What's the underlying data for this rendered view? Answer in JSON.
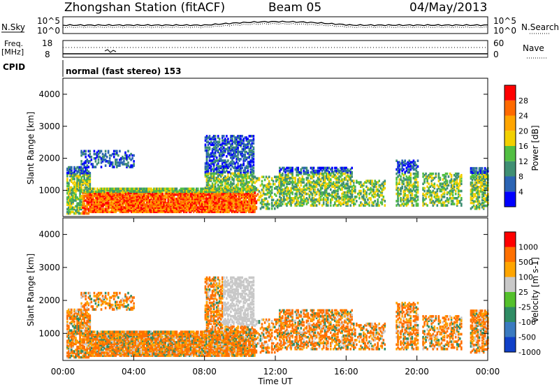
{
  "header": {
    "station": "Zhongshan Station (fitACF)",
    "beam": "Beam 05",
    "date": "04/May/2013"
  },
  "noise_panel": {
    "left_label": "N.Sky",
    "left_ticks": [
      "10^5",
      "10^0"
    ],
    "right_ticks": [
      "10^5",
      "10^0"
    ],
    "right_label": "N.Search"
  },
  "freq_panel": {
    "left_label_1": "Freq.",
    "left_label_2": "[MHz]",
    "left_ticks": [
      "18",
      "8"
    ],
    "right_ticks": [
      "60",
      "0"
    ],
    "right_label": "Nave"
  },
  "cpid": {
    "label": "CPID",
    "text": "normal (fast stereo) 153"
  },
  "colors": {
    "power": [
      "#0000ff",
      "#2b64b4",
      "#3f8f73",
      "#52bf43",
      "#f2d000",
      "#ffa500",
      "#ff6a00",
      "#ff0000"
    ],
    "velocity": [
      "#1040c8",
      "#3a7ac0",
      "#2f8c64",
      "#54c02c",
      "#c8c8c8",
      "#ffa500",
      "#ff7000",
      "#ff0000"
    ]
  },
  "chart_data": [
    {
      "type": "heatmap",
      "name": "power",
      "ylabel": "Slant Range [km]",
      "xlabel": "",
      "xlim": [
        0,
        24
      ],
      "ylim": [
        180,
        4500
      ],
      "yticks": [
        "1000",
        "2000",
        "3000",
        "4000"
      ],
      "colorbar": {
        "label": "Power [dB]",
        "ticks": [
          "4",
          "8",
          "12",
          "16",
          "20",
          "24",
          "28"
        ],
        "range": [
          0,
          32
        ]
      }
    },
    {
      "type": "heatmap",
      "name": "velocity",
      "ylabel": "Slant Range [km]",
      "xlabel": "Time UT",
      "xlim": [
        0,
        24
      ],
      "ylim": [
        180,
        4500
      ],
      "xticks": [
        "00:00",
        "04:00",
        "08:00",
        "12:00",
        "16:00",
        "20:00",
        "00:00"
      ],
      "yticks": [
        "1000",
        "2000",
        "3000",
        "4000"
      ],
      "colorbar": {
        "label": "Velocity [m s-1]",
        "ticks": [
          "1000",
          "500",
          "100",
          "25",
          "-25",
          "-100",
          "-500",
          "-1000"
        ]
      }
    }
  ]
}
